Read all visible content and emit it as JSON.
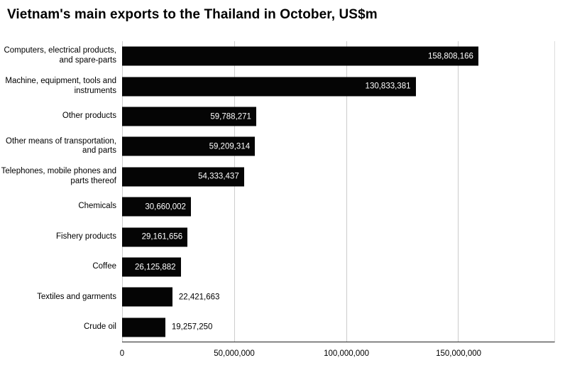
{
  "title": "Vietnam's main exports to the Thailand in October, US$m",
  "chart_data": {
    "type": "bar",
    "orientation": "horizontal",
    "title": "Vietnam's main exports to the Thailand in October, US$m",
    "xlabel": "",
    "ylabel": "",
    "grid": true,
    "legend_position": "none",
    "axis_max": 193000000,
    "bar_color": "#050505",
    "grid_color": "#cccccc",
    "value_label_inside_color": "#ffffff",
    "value_label_outside_color": "#000000",
    "categories": [
      "Computers, electrical products, and spare-parts",
      "Machine, equipment, tools and instruments",
      "Other products",
      "Other means of transportation, and parts",
      "Telephones, mobile phones and parts thereof",
      "Chemicals",
      "Fishery products",
      "Coffee",
      "Textiles and garments",
      "Crude oil"
    ],
    "values": [
      158808166,
      130833381,
      59788271,
      59209314,
      54333437,
      30660002,
      29161656,
      26125882,
      22421663,
      19257250
    ],
    "value_labels": [
      "158,808,166",
      "130,833,381",
      "59,788,271",
      "59,209,314",
      "54,333,437",
      "30,660,002",
      "29,161,656",
      "26,125,882",
      "22,421,663",
      "19,257,250"
    ],
    "x_ticks": [
      {
        "value": 0,
        "label": "0"
      },
      {
        "value": 50000000,
        "label": "50,000,000"
      },
      {
        "value": 100000000,
        "label": "100,000,000"
      },
      {
        "value": 150000000,
        "label": "150,000,000"
      }
    ]
  }
}
